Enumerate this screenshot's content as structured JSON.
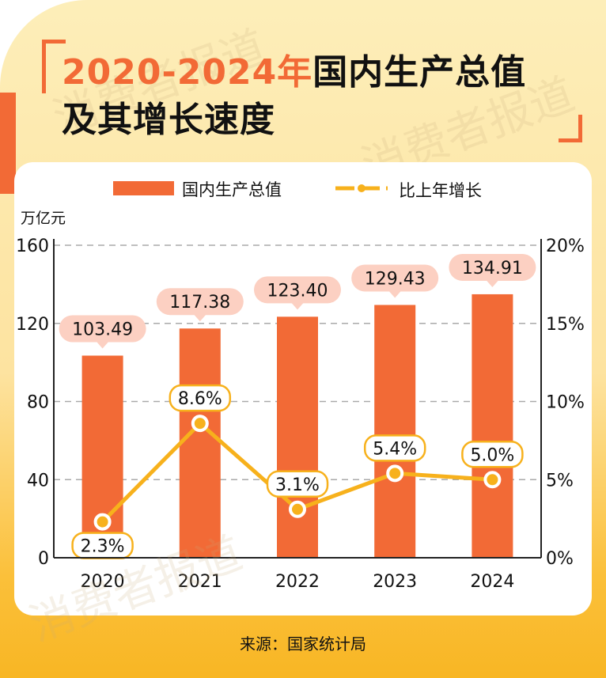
{
  "title": {
    "highlight": "2020-2024年",
    "rest_line1": "国内生产总值",
    "line2": "及其增长速度"
  },
  "watermark": "消费者报道",
  "source": "来源：国家统计局",
  "colors": {
    "bar": "#f26a36",
    "line": "#f7b11c",
    "bar_label_bg": "#fcd0c2",
    "accent": "#f26a36"
  },
  "chart_data": {
    "type": "bar+line",
    "categories": [
      "2020",
      "2021",
      "2022",
      "2023",
      "2024"
    ],
    "left_axis": {
      "unit_label": "万亿元",
      "ylim": [
        0,
        160
      ],
      "ticks": [
        "0",
        "40",
        "80",
        "120",
        "160"
      ]
    },
    "right_axis": {
      "ylim": [
        0,
        20
      ],
      "ticks": [
        "0%",
        "5%",
        "10%",
        "15%",
        "20%"
      ]
    },
    "grid": true,
    "legend_position": "top",
    "series": [
      {
        "name": "国内生产总值",
        "type": "bar",
        "axis": "left",
        "values": [
          103.49,
          117.38,
          123.4,
          129.43,
          134.91
        ],
        "labels": [
          "103.49",
          "117.38",
          "123.40",
          "129.43",
          "134.91"
        ]
      },
      {
        "name": "比上年增长",
        "type": "line",
        "axis": "right",
        "values": [
          2.3,
          8.6,
          3.1,
          5.4,
          5.0
        ],
        "labels": [
          "2.3%",
          "8.6%",
          "3.1%",
          "5.4%",
          "5.0%"
        ]
      }
    ]
  }
}
